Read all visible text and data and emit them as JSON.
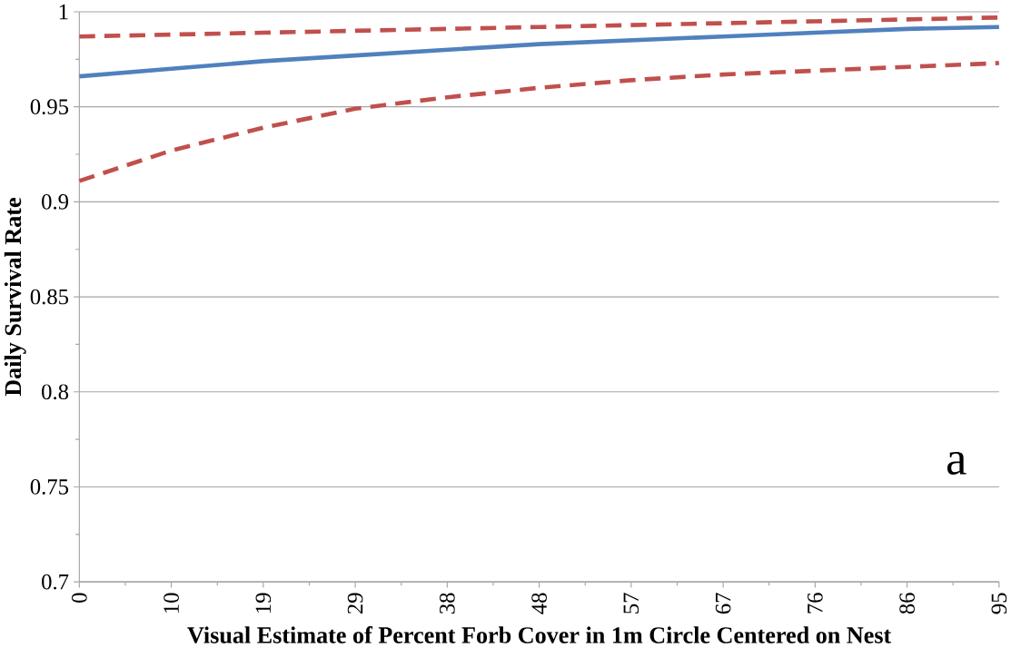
{
  "chart_data": {
    "type": "line",
    "xlabel": "Visual Estimate of Percent Forb Cover in 1m Circle Centered on Nest",
    "ylabel": "Daily Survival Rate",
    "x": [
      0,
      9.5,
      19,
      28.5,
      38,
      47.5,
      57,
      66.5,
      76,
      85.5,
      95
    ],
    "series": [
      {
        "color": "#c0504d",
        "line_style": "dashed",
        "values": [
          0.987,
          0.988,
          0.989,
          0.99,
          0.991,
          0.992,
          0.993,
          0.994,
          0.995,
          0.996,
          0.997
        ]
      },
      {
        "color": "#4f81bd",
        "line_style": "solid",
        "values": [
          0.966,
          0.97,
          0.974,
          0.977,
          0.98,
          0.983,
          0.985,
          0.987,
          0.989,
          0.991,
          0.992
        ]
      },
      {
        "color": "#c0504d",
        "line_style": "dashed",
        "values": [
          0.911,
          0.927,
          0.939,
          0.949,
          0.955,
          0.96,
          0.964,
          0.967,
          0.969,
          0.971,
          0.973
        ]
      }
    ],
    "xlim": [
      0,
      95
    ],
    "xticks": [
      0,
      {
        "value": 9.5,
        "label": "10"
      },
      19,
      {
        "value": 28.5,
        "label": "29"
      },
      38,
      {
        "value": 47.5,
        "label": "48"
      },
      57,
      {
        "value": 66.5,
        "label": "67"
      },
      76,
      {
        "value": 85.5,
        "label": "86"
      },
      95
    ],
    "ylim": [
      0.7,
      1
    ],
    "yticks": [
      0.7,
      0.75,
      0.8,
      0.85,
      0.9,
      0.95,
      1
    ],
    "grid": "y",
    "annotations": [
      "a"
    ]
  }
}
